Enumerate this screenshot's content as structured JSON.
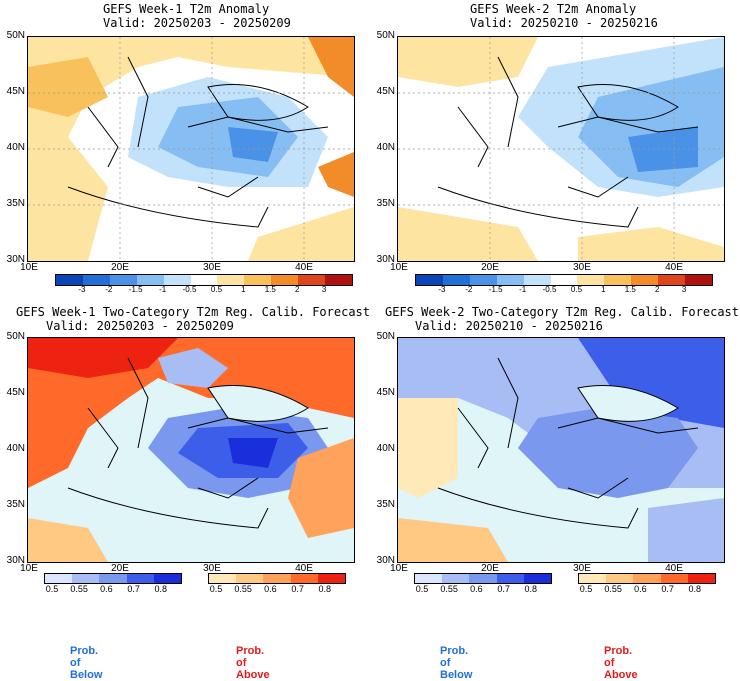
{
  "panels": [
    {
      "title_line1": "GEFS Week-1 T2m Anomaly",
      "title_line2": "Valid: 20250203 - 20250209"
    },
    {
      "title_line1": "GEFS Week-2 T2m Anomaly",
      "title_line2": "Valid: 20250210 - 20250216"
    },
    {
      "title_line1": "GEFS Week-1 Two-Category T2m Reg. Calib. Forecast",
      "title_line2": "Valid: 20250203 - 20250209"
    },
    {
      "title_line1": "GEFS Week-2 Two-Category T2m Reg. Calib. Forecast",
      "title_line2": "Valid: 20250210 - 20250216"
    }
  ],
  "lat_labels": [
    "50N",
    "45N",
    "40N",
    "35N",
    "30N"
  ],
  "lon_labels": [
    "10E",
    "20E",
    "30E",
    "40E"
  ],
  "anomaly_colorbar_ticks": [
    "-3",
    "-2",
    "-1.5",
    "-1",
    "-0.5",
    "0.5",
    "1",
    "1.5",
    "2",
    "3"
  ],
  "anomaly_colors": [
    "#0a45b8",
    "#1f6fd6",
    "#4a92e8",
    "#86bdf2",
    "#c2e1fb",
    "#ffffff",
    "#fde4a0",
    "#f9c15b",
    "#f28c28",
    "#e0441a",
    "#b0120f"
  ],
  "prob_ticks": [
    "0.5",
    "0.55",
    "0.6",
    "0.7",
    "0.8"
  ],
  "below_colors": [
    "#dbe6ff",
    "#a9bdf5",
    "#7a98ee",
    "#3d5ee8",
    "#1a2edc"
  ],
  "above_colors": [
    "#ffe9b8",
    "#ffc983",
    "#ffa35c",
    "#ff6a2a",
    "#ee2211"
  ],
  "land_color": "#dff5f8",
  "prob_of_below": "Prob. of Below",
  "prob_of_above": "Prob. of Above"
}
